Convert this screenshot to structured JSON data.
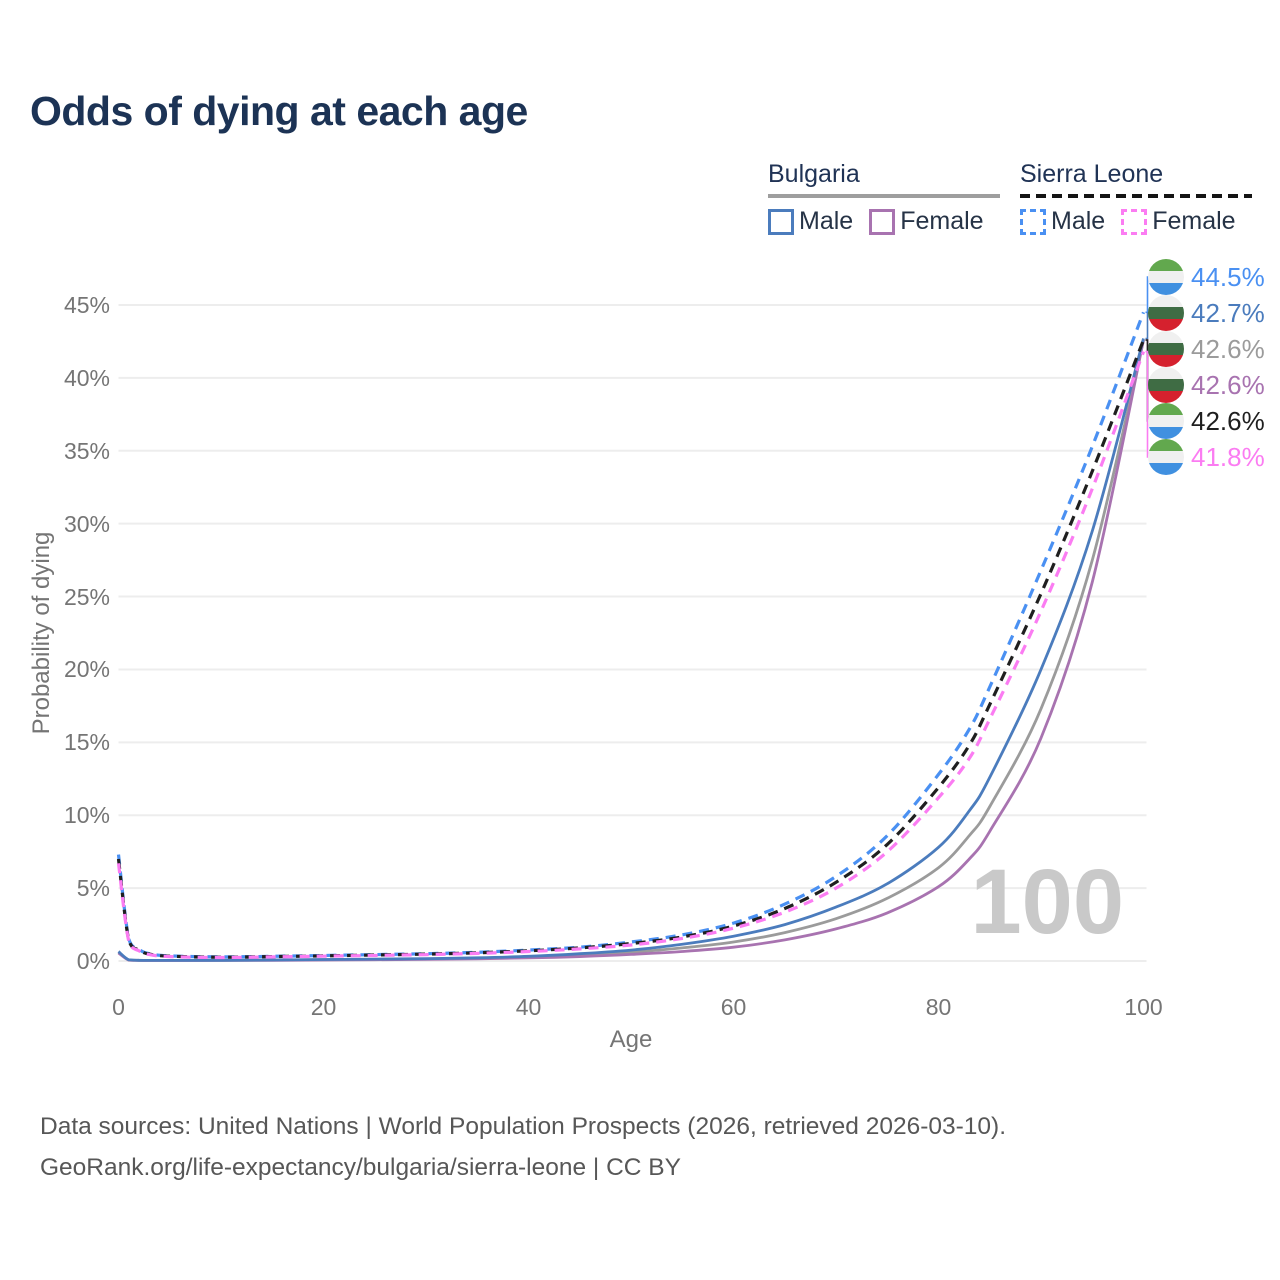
{
  "title": "Odds of dying at each age",
  "legend": {
    "groups": [
      {
        "name": "Bulgaria",
        "line_style": "solid",
        "underline_color": "#9e9e9e",
        "items": [
          {
            "label": "Male",
            "color": "#4b7cbd"
          },
          {
            "label": "Female",
            "color": "#a873b0"
          }
        ]
      },
      {
        "name": "Sierra Leone",
        "line_style": "dashed",
        "underline_color": "#141414",
        "items": [
          {
            "label": "Male",
            "color": "#4a90f2"
          },
          {
            "label": "Female",
            "color": "#fb7cf2"
          }
        ]
      }
    ]
  },
  "chart_data": {
    "type": "line",
    "title": "Odds of dying at each age",
    "xlabel": "Age",
    "ylabel": "Probability of dying",
    "x_range": [
      0,
      100
    ],
    "y_range": [
      0,
      45
    ],
    "x_ticks": [
      0,
      20,
      40,
      60,
      80,
      100
    ],
    "y_ticks": [
      0,
      5,
      10,
      15,
      20,
      25,
      30,
      35,
      40,
      45
    ],
    "y_tick_suffix": "%",
    "grid": "horizontal",
    "gridline_color": "#ededed",
    "watermark": "100",
    "x": [
      0,
      1,
      2,
      3,
      5,
      10,
      15,
      20,
      25,
      30,
      35,
      40,
      45,
      50,
      55,
      60,
      65,
      70,
      75,
      80,
      83,
      85,
      90,
      95,
      100
    ],
    "series": [
      {
        "id": "bg_total",
        "name": "Bulgaria",
        "country": "bulgaria",
        "color": "#9b9b9b",
        "dash": false,
        "values": [
          0.6,
          0.07,
          0.05,
          0.04,
          0.04,
          0.045,
          0.06,
          0.09,
          0.11,
          0.14,
          0.19,
          0.27,
          0.42,
          0.6,
          0.9,
          1.3,
          1.95,
          2.9,
          4.3,
          6.4,
          8.6,
          10.6,
          17.3,
          27.5,
          42.6
        ]
      },
      {
        "id": "bg_female",
        "name": "Bulgaria Female",
        "country": "bulgaria",
        "color": "#a873b0",
        "dash": false,
        "values": [
          0.55,
          0.06,
          0.04,
          0.035,
          0.035,
          0.04,
          0.05,
          0.07,
          0.09,
          0.11,
          0.15,
          0.21,
          0.3,
          0.45,
          0.65,
          0.95,
          1.45,
          2.2,
          3.3,
          5.1,
          7.0,
          8.9,
          15.3,
          26.0,
          42.6
        ]
      },
      {
        "id": "bg_male",
        "name": "Bulgaria Male",
        "country": "bulgaria",
        "color": "#4b7cbd",
        "dash": false,
        "values": [
          0.65,
          0.08,
          0.05,
          0.04,
          0.04,
          0.05,
          0.07,
          0.1,
          0.13,
          0.16,
          0.22,
          0.32,
          0.5,
          0.75,
          1.15,
          1.7,
          2.5,
          3.7,
          5.3,
          7.8,
          10.3,
          12.6,
          20.0,
          29.5,
          42.7
        ]
      },
      {
        "id": "sl_male",
        "name": "Sierra Leone Male",
        "country": "sierra-leone",
        "color": "#4a90f2",
        "dash": true,
        "values": [
          7.3,
          1.5,
          0.8,
          0.5,
          0.35,
          0.28,
          0.32,
          0.38,
          0.44,
          0.5,
          0.6,
          0.75,
          0.95,
          1.3,
          1.8,
          2.6,
          3.9,
          5.8,
          8.6,
          12.8,
          15.9,
          18.8,
          26.8,
          35.3,
          44.5
        ]
      },
      {
        "id": "sl_total",
        "name": "Sierra Leone",
        "country": "sierra-leone",
        "color": "#1f1f1f",
        "dash": true,
        "values": [
          7.0,
          1.42,
          0.75,
          0.47,
          0.33,
          0.26,
          0.3,
          0.35,
          0.41,
          0.47,
          0.56,
          0.7,
          0.9,
          1.2,
          1.65,
          2.4,
          3.6,
          5.4,
          8.0,
          11.9,
          14.8,
          17.6,
          25.2,
          33.6,
          42.6
        ]
      },
      {
        "id": "sl_female",
        "name": "Sierra Leone Female",
        "country": "sierra-leone",
        "color": "#fb7cf2",
        "dash": true,
        "values": [
          6.7,
          1.35,
          0.7,
          0.44,
          0.3,
          0.24,
          0.28,
          0.33,
          0.38,
          0.44,
          0.52,
          0.65,
          0.83,
          1.1,
          1.55,
          2.25,
          3.35,
          5.0,
          7.5,
          11.2,
          13.9,
          16.6,
          24.0,
          32.4,
          41.8
        ]
      }
    ],
    "end_labels": [
      {
        "series": "sl_male",
        "text": "44.5%",
        "country": "sierra-leone",
        "color": "#4a90f2"
      },
      {
        "series": "bg_male",
        "text": "42.7%",
        "country": "bulgaria",
        "color": "#4b7cbd"
      },
      {
        "series": "bg_total",
        "text": "42.6%",
        "country": "bulgaria",
        "color": "#9b9b9b"
      },
      {
        "series": "bg_female",
        "text": "42.6%",
        "country": "bulgaria",
        "color": "#a873b0"
      },
      {
        "series": "sl_total",
        "text": "42.6%",
        "country": "sierra-leone",
        "color": "#1f1f1f"
      },
      {
        "series": "sl_female",
        "text": "41.8%",
        "country": "sierra-leone",
        "color": "#fb7cf2"
      }
    ],
    "flags": {
      "bulgaria": [
        "#f0f0f0",
        "#3f6c44",
        "#d5212e"
      ],
      "sierra-leone": [
        "#62a84e",
        "#f0f0f0",
        "#4090e0"
      ]
    }
  },
  "footer": {
    "line1": "Data sources: United Nations | World Population Prospects (2026, retrieved 2026-03-10).",
    "line2": "GeoRank.org/life-expectancy/bulgaria/sierra-leone | CC BY"
  }
}
